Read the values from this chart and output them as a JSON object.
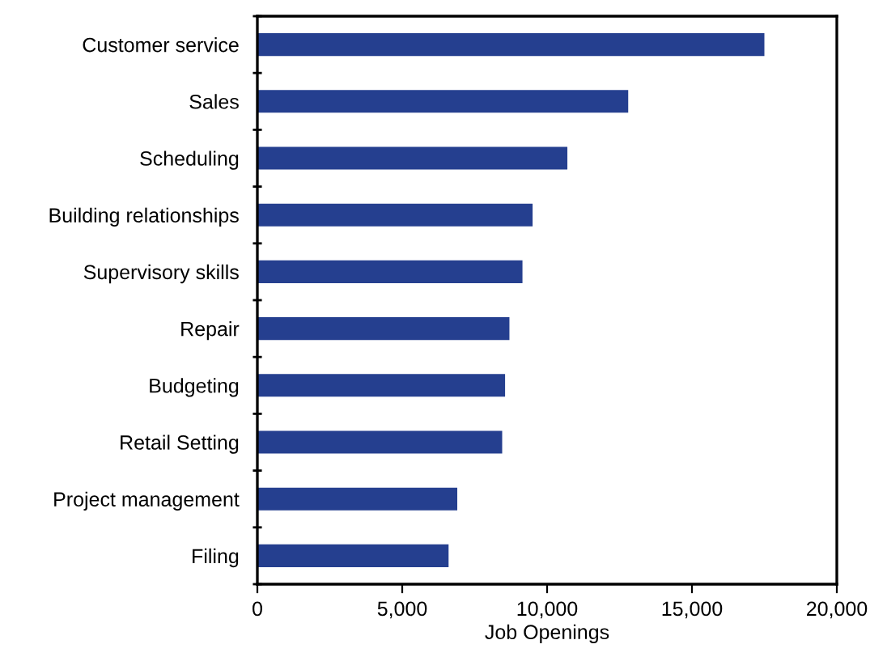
{
  "chart_data": {
    "type": "bar",
    "orientation": "horizontal",
    "xlabel": "Job Openings",
    "categories": [
      "Customer service",
      "Sales",
      "Scheduling",
      "Building relationships",
      "Supervisory skills",
      "Repair",
      "Budgeting",
      "Retail Setting",
      "Project management",
      "Filing"
    ],
    "values": [
      17500,
      12800,
      10700,
      9500,
      9150,
      8700,
      8550,
      8450,
      6900,
      6600
    ],
    "color": "#253f8f",
    "xlim": [
      0,
      20000
    ],
    "xticks": [
      {
        "value": 0,
        "label": "0"
      },
      {
        "value": 5000,
        "label": "5,000"
      },
      {
        "value": 10000,
        "label": "10,000"
      },
      {
        "value": 15000,
        "label": "15,000"
      },
      {
        "value": 20000,
        "label": "20,000"
      }
    ],
    "grid": false,
    "legend": false
  }
}
